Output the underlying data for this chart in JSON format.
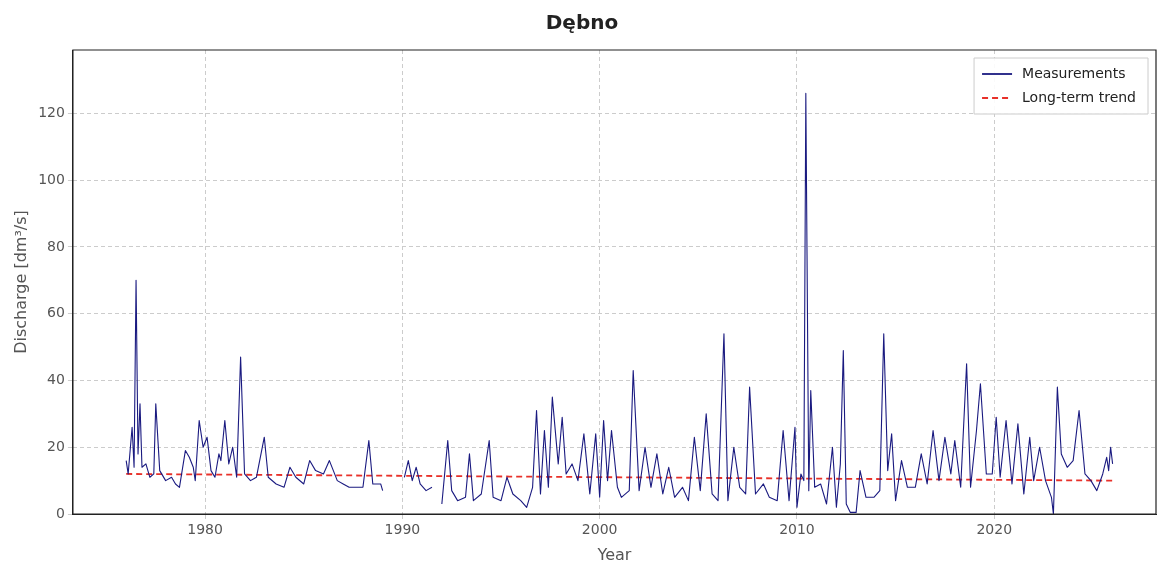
{
  "chart_data": {
    "type": "line",
    "title": "Dębno",
    "xlabel": "Year",
    "ylabel": "Discharge [dm³/s]",
    "xlim": [
      1973.3,
      2028.2
    ],
    "xticks": [
      1980,
      1990,
      2000,
      2010,
      2020
    ],
    "ylim": [
      0,
      139
    ],
    "yticks": [
      0,
      20,
      40,
      60,
      80,
      100,
      120
    ],
    "grid": true,
    "legend": "top right",
    "marker": "none",
    "series": [
      {
        "name": "Measurements",
        "color": "#1a1a80",
        "line_style": "solid",
        "x": [
          1976.0,
          1976.1,
          1976.3,
          1976.4,
          1976.5,
          1976.6,
          1976.7,
          1976.8,
          1977.0,
          1977.2,
          1977.4,
          1977.5,
          1977.7,
          1978.0,
          1978.3,
          1978.5,
          1978.7,
          1979.0,
          1979.2,
          1979.4,
          1979.5,
          1979.7,
          1979.9,
          1980.1,
          1980.3,
          1980.5,
          1980.7,
          1980.8,
          1981.0,
          1981.2,
          1981.4,
          1981.6,
          1981.8,
          1982.0,
          1982.3,
          1982.6,
          1983.0,
          1983.2,
          1983.6,
          1984.0,
          1984.3,
          1984.6,
          1985.0,
          1985.3,
          1985.6,
          1986.0,
          1986.3,
          1986.7,
          1987.0,
          1987.3,
          1987.6,
          1988.0,
          1988.3,
          1988.5,
          1988.9,
          1989.0,
          1990.0,
          1990.1,
          1990.3,
          1990.5,
          1990.7,
          1990.9,
          1991.2,
          1991.5,
          1991.8,
          1992.0,
          1992.3,
          1992.5,
          1992.8,
          1993.2,
          1993.4,
          1993.6,
          1994.0,
          1994.4,
          1994.6,
          1995.0,
          1995.3,
          1995.6,
          1996.0,
          1996.3,
          1996.6,
          1996.8,
          1997.0,
          1997.2,
          1997.4,
          1997.6,
          1997.9,
          1998.1,
          1998.3,
          1998.6,
          1998.9,
          1999.2,
          1999.5,
          1999.8,
          2000.0,
          2000.2,
          2000.4,
          2000.6,
          2000.9,
          2001.1,
          2001.5,
          2001.7,
          2002.0,
          2002.3,
          2002.6,
          2002.9,
          2003.2,
          2003.5,
          2003.8,
          2004.2,
          2004.5,
          2004.8,
          2005.1,
          2005.4,
          2005.7,
          2006.0,
          2006.3,
          2006.5,
          2006.8,
          2007.1,
          2007.4,
          2007.6,
          2007.9,
          2008.3,
          2008.6,
          2009.0,
          2009.3,
          2009.6,
          2009.9,
          2010.0,
          2010.2,
          2010.35,
          2010.45,
          2010.6,
          2010.7,
          2010.9,
          2011.2,
          2011.5,
          2011.8,
          2012.0,
          2012.2,
          2012.35,
          2012.5,
          2012.7,
          2013.0,
          2013.2,
          2013.5,
          2013.9,
          2014.2,
          2014.4,
          2014.6,
          2014.8,
          2015.0,
          2015.3,
          2015.6,
          2016.0,
          2016.3,
          2016.6,
          2016.9,
          2017.2,
          2017.5,
          2017.8,
          2018.0,
          2018.3,
          2018.6,
          2018.8,
          2019.1,
          2019.3,
          2019.6,
          2019.9,
          2020.1,
          2020.3,
          2020.6,
          2020.9,
          2021.2,
          2021.5,
          2021.8,
          2022.0,
          2022.3,
          2022.6,
          2022.9,
          2023.0,
          2023.2,
          2023.4,
          2023.7,
          2024.0,
          2024.3,
          2024.6,
          2024.9,
          2025.2,
          2025.5,
          2025.7,
          2025.8,
          2025.9,
          2026.0
        ],
        "values": [
          16,
          12,
          26,
          14,
          70,
          18,
          33,
          14,
          15,
          11,
          12,
          33,
          13,
          10,
          11,
          9,
          8,
          19,
          17,
          14,
          10,
          28,
          20,
          23,
          13,
          11,
          18,
          16,
          28,
          15,
          20,
          11,
          47,
          12,
          10,
          11,
          23,
          11,
          9,
          8,
          14,
          11,
          9,
          16,
          13,
          12,
          16,
          10,
          9,
          8,
          8,
          8,
          22,
          9,
          9,
          7,
          null,
          11,
          16,
          10,
          14,
          9,
          7,
          8,
          null,
          3,
          22,
          7,
          4,
          5,
          18,
          4,
          6,
          22,
          5,
          4,
          11,
          6,
          4,
          2,
          8,
          31,
          6,
          25,
          8,
          35,
          15,
          29,
          12,
          15,
          10,
          24,
          6,
          24,
          5,
          28,
          10,
          25,
          8,
          5,
          7,
          43,
          7,
          20,
          8,
          18,
          6,
          14,
          5,
          8,
          4,
          23,
          7,
          30,
          6,
          4,
          54,
          4,
          20,
          8,
          6,
          38,
          6,
          9,
          5,
          4,
          25,
          4,
          26,
          2,
          12,
          10,
          126,
          7,
          37,
          8,
          9,
          3,
          20,
          2,
          15,
          49,
          3,
          0.5,
          0.5,
          13,
          5,
          5,
          7,
          54,
          13,
          24,
          4,
          16,
          8,
          8,
          18,
          9,
          25,
          10,
          23,
          12,
          22,
          8,
          45,
          8,
          25,
          39,
          12,
          12,
          29,
          11,
          28,
          9,
          27,
          6,
          23,
          10,
          20,
          10,
          5,
          0,
          38,
          18,
          14,
          16,
          31,
          12,
          10,
          7,
          12,
          17,
          13,
          20,
          15
        ]
      },
      {
        "name": "Long-term trend",
        "color": "#e8312a",
        "line_style": "dashed",
        "x": [
          1976.0,
          2026.0
        ],
        "values": [
          12,
          10
        ]
      }
    ]
  }
}
